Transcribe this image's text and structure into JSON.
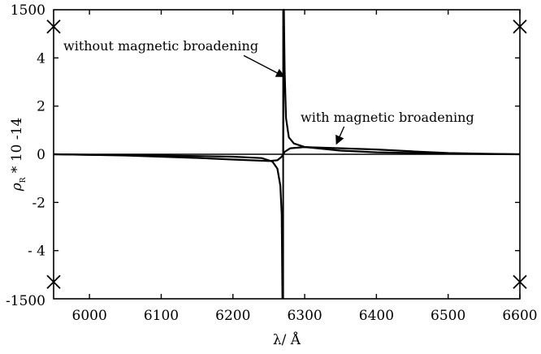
{
  "chart_data": {
    "type": "line",
    "xlabel": "λ/ Å",
    "ylabel_symbol": "ρ",
    "ylabel_subscript": "R",
    "ylabel_suffix": " * 10 -14",
    "xlim": [
      5950,
      6600
    ],
    "ylim": [
      -6,
      6
    ],
    "x_ticks": [
      6000,
      6100,
      6200,
      6300,
      6400,
      6500,
      6600
    ],
    "y_ticks": [
      {
        "value": 4,
        "label": "4"
      },
      {
        "value": 2,
        "label": "2"
      },
      {
        "value": 0,
        "label": "0"
      },
      {
        "value": -2,
        "label": "-2"
      },
      {
        "value": -4,
        "label": "- 4"
      }
    ],
    "y_end_labels": {
      "top": "1500",
      "bottom": "-1500"
    },
    "vertical_line_x": 6270,
    "series": [
      {
        "name": "without magnetic broadening",
        "points": [
          [
            5950,
            0
          ],
          [
            6000,
            -0.02
          ],
          [
            6100,
            -0.05
          ],
          [
            6200,
            -0.1
          ],
          [
            6240,
            -0.16
          ],
          [
            6255,
            -0.3
          ],
          [
            6262,
            -0.6
          ],
          [
            6266,
            -1.3
          ],
          [
            6268,
            -2.5
          ],
          [
            6269,
            -6.0
          ],
          [
            6270,
            0
          ],
          [
            6271,
            6.0
          ],
          [
            6272,
            3.5
          ],
          [
            6274,
            1.5
          ],
          [
            6278,
            0.7
          ],
          [
            6285,
            0.45
          ],
          [
            6300,
            0.3
          ],
          [
            6350,
            0.15
          ],
          [
            6400,
            0.08
          ],
          [
            6500,
            0.02
          ],
          [
            6600,
            0
          ]
        ]
      },
      {
        "name": "with magnetic broadening",
        "points": [
          [
            5950,
            0
          ],
          [
            6050,
            -0.05
          ],
          [
            6150,
            -0.15
          ],
          [
            6200,
            -0.22
          ],
          [
            6250,
            -0.28
          ],
          [
            6262,
            -0.25
          ],
          [
            6268,
            -0.1
          ],
          [
            6272,
            0.1
          ],
          [
            6280,
            0.25
          ],
          [
            6300,
            0.3
          ],
          [
            6350,
            0.25
          ],
          [
            6400,
            0.2
          ],
          [
            6450,
            0.12
          ],
          [
            6500,
            0.05
          ],
          [
            6550,
            0.02
          ],
          [
            6600,
            0
          ]
        ]
      }
    ],
    "annotations": [
      {
        "text": "without magnetic broadening",
        "arrow_from": [
          6215,
          4.1
        ],
        "arrow_to": [
          6270,
          3.25
        ]
      },
      {
        "text": "with magnetic broadening",
        "arrow_from": [
          6355,
          1.15
        ],
        "arrow_to": [
          6345,
          0.48
        ]
      }
    ]
  }
}
